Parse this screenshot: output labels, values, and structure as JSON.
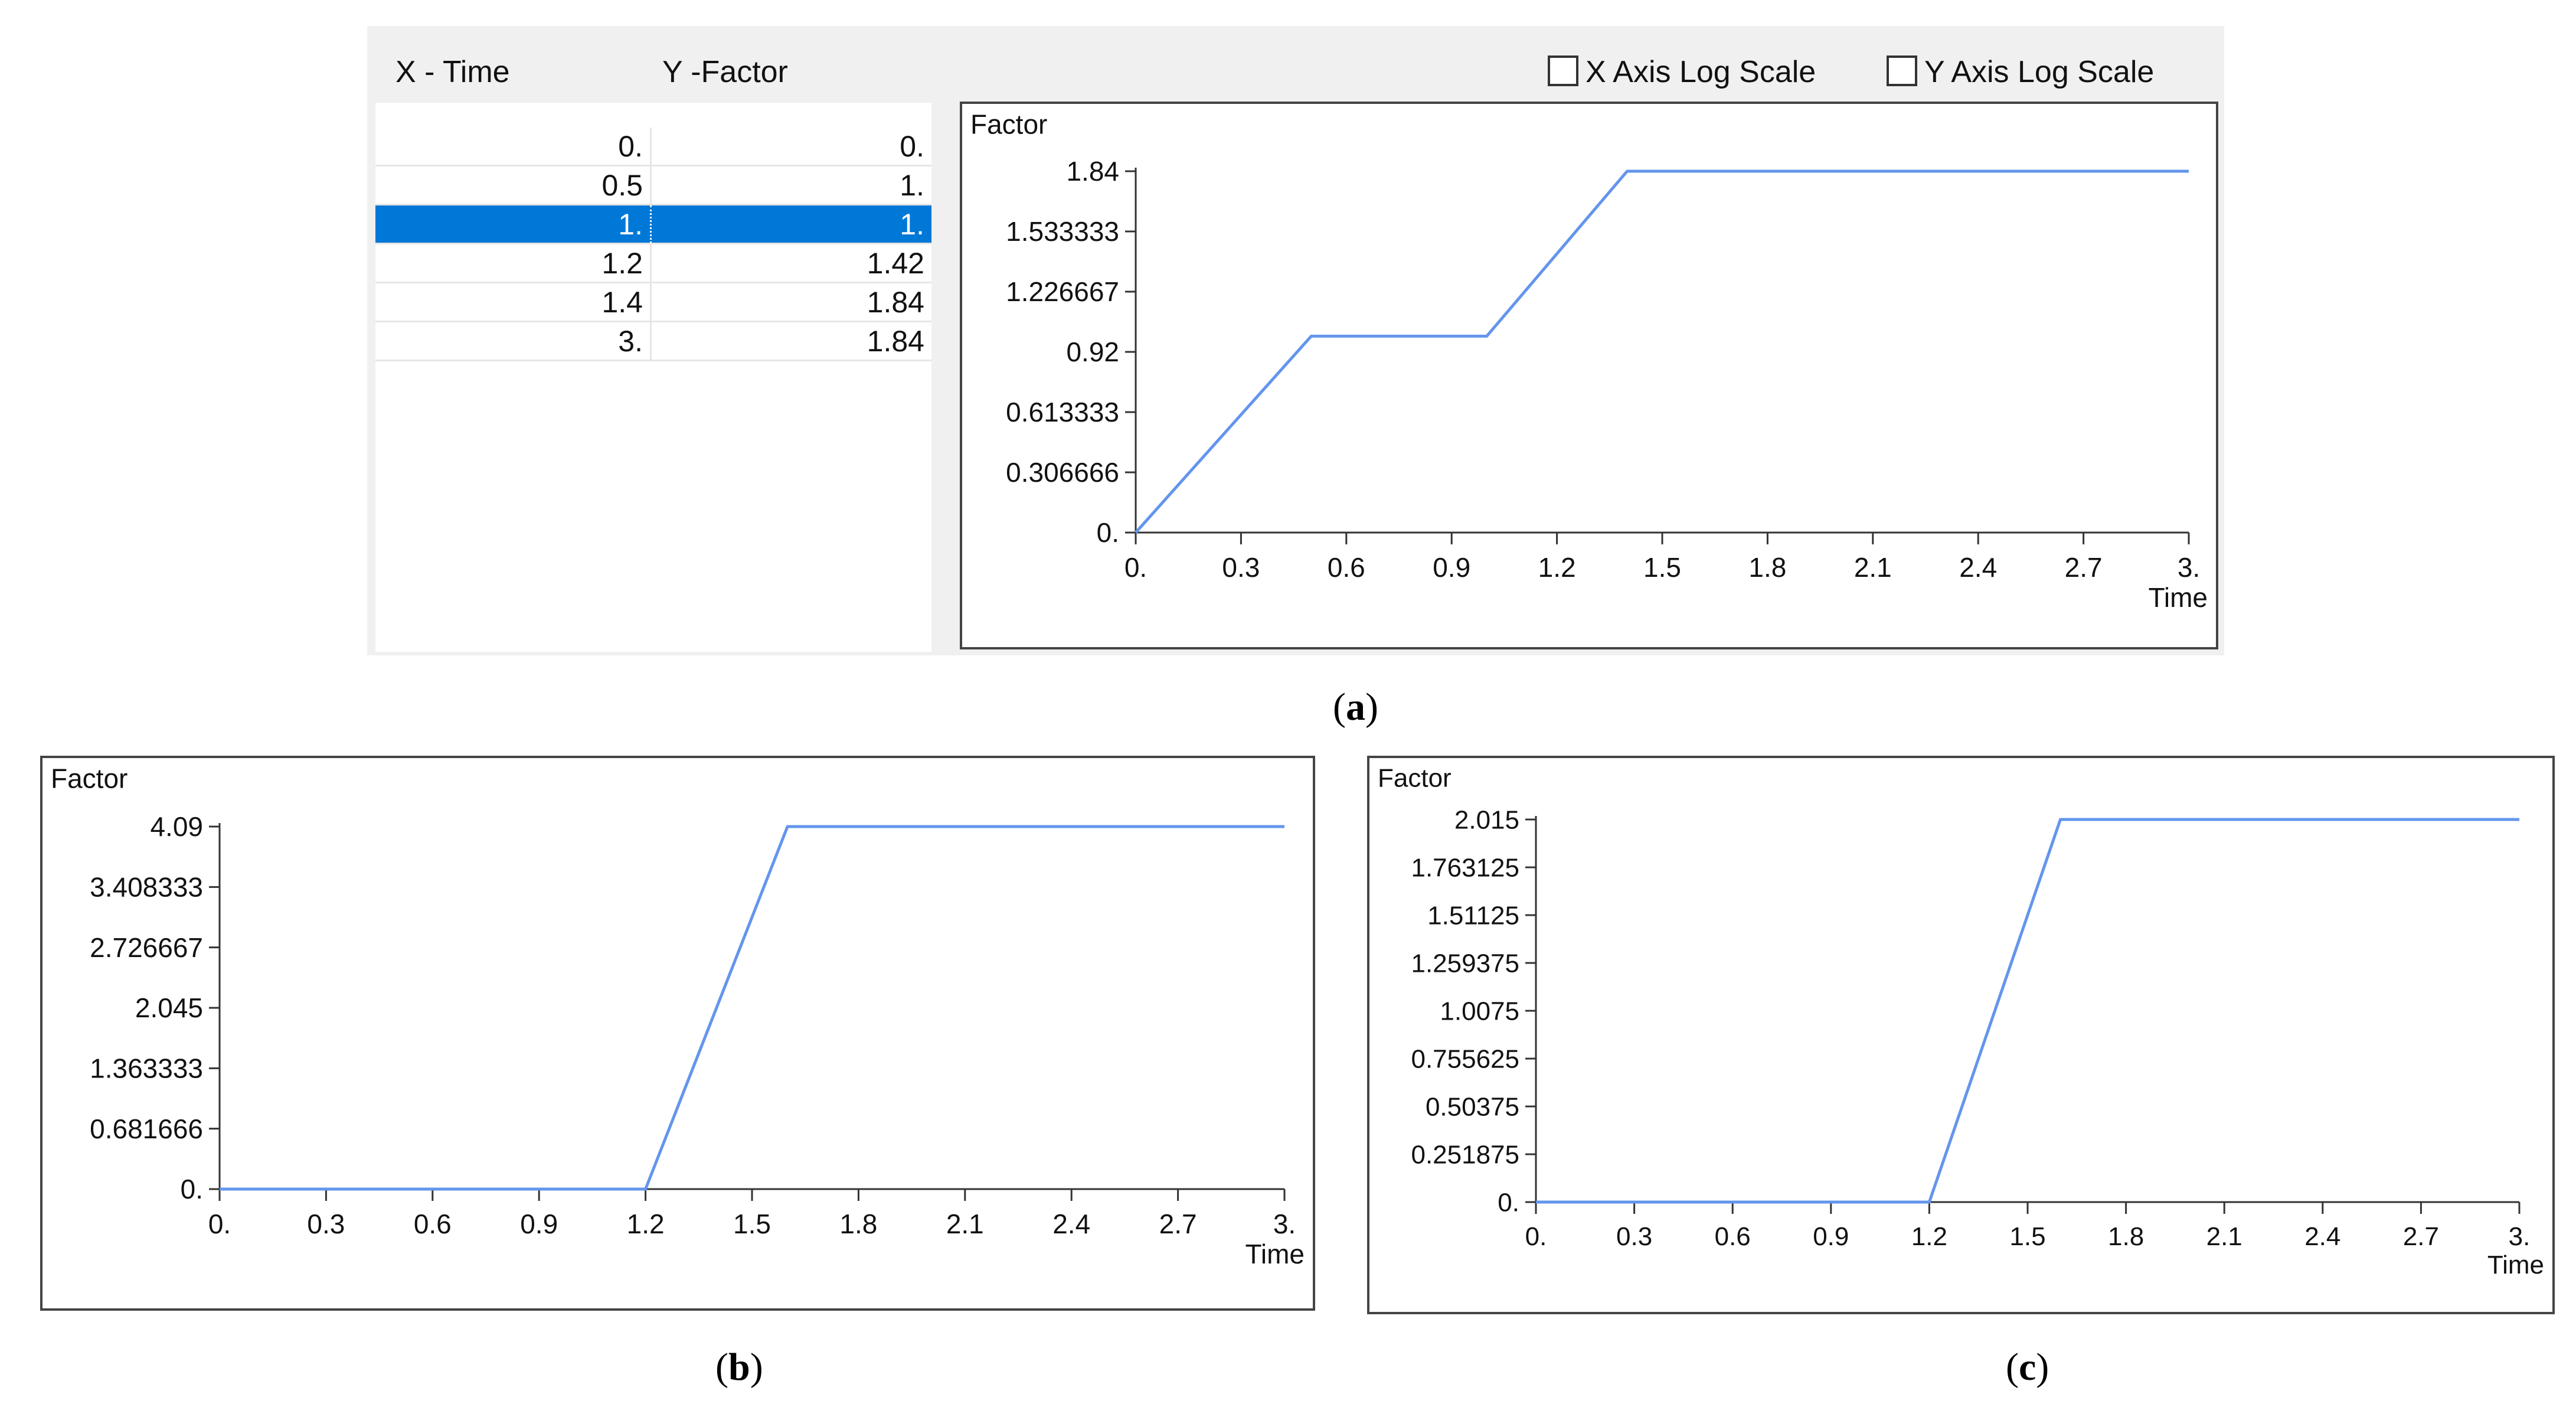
{
  "panel_a": {
    "table": {
      "headers": [
        "X - Time",
        "Y -Factor"
      ],
      "rows": [
        {
          "x": "0.",
          "y": "0."
        },
        {
          "x": "0.5",
          "y": "1."
        },
        {
          "x": "1.",
          "y": "1.",
          "selected": true
        },
        {
          "x": "1.2",
          "y": "1.42"
        },
        {
          "x": "1.4",
          "y": "1.84"
        },
        {
          "x": "3.",
          "y": "1.84"
        }
      ]
    },
    "x_log_label": "X Axis Log Scale",
    "y_log_label": "Y Axis Log Scale",
    "x_log_checked": false,
    "y_log_checked": false
  },
  "captions": {
    "a": "a",
    "b": "b",
    "c": "c"
  },
  "chart_data": [
    {
      "id": "a",
      "type": "line",
      "ylabel": "Factor",
      "xlabel": "Time",
      "x": [
        0,
        0.5,
        1,
        1.2,
        1.4,
        3
      ],
      "series": [
        {
          "values": [
            0,
            1,
            1,
            1.42,
            1.84,
            1.84
          ]
        }
      ],
      "xlim": [
        0,
        3
      ],
      "ylim": [
        0,
        1.84
      ],
      "x_ticks": [
        "0.",
        "0.3",
        "0.6",
        "0.9",
        "1.2",
        "1.5",
        "1.8",
        "2.1",
        "2.4",
        "2.7",
        "3."
      ],
      "y_ticks": [
        "0.",
        "0.306666",
        "0.613333",
        "0.92",
        "1.226667",
        "1.533333",
        "1.84"
      ],
      "line_color": "#6495ed",
      "grid": false
    },
    {
      "id": "b",
      "type": "line",
      "ylabel": "Factor",
      "xlabel": "Time",
      "x": [
        0,
        1.2,
        1.6,
        3
      ],
      "series": [
        {
          "values": [
            0,
            0,
            4.09,
            4.09
          ]
        }
      ],
      "xlim": [
        0,
        3
      ],
      "ylim": [
        0,
        4.09
      ],
      "x_ticks": [
        "0.",
        "0.3",
        "0.6",
        "0.9",
        "1.2",
        "1.5",
        "1.8",
        "2.1",
        "2.4",
        "2.7",
        "3."
      ],
      "y_ticks": [
        "0.",
        "0.681666",
        "1.363333",
        "2.045",
        "2.726667",
        "3.408333",
        "4.09"
      ],
      "line_color": "#6495ed",
      "grid": false
    },
    {
      "id": "c",
      "type": "line",
      "ylabel": "Factor",
      "xlabel": "Time",
      "x": [
        0,
        1.2,
        1.6,
        3
      ],
      "series": [
        {
          "values": [
            0,
            0,
            2.015,
            2.015
          ]
        }
      ],
      "xlim": [
        0,
        3
      ],
      "ylim": [
        0,
        2.015
      ],
      "x_ticks": [
        "0.",
        "0.3",
        "0.6",
        "0.9",
        "1.2",
        "1.5",
        "1.8",
        "2.1",
        "2.4",
        "2.7",
        "3."
      ],
      "y_ticks": [
        "0.",
        "0.251875",
        "0.50375",
        "0.755625",
        "1.0075",
        "1.259375",
        "1.51125",
        "1.763125",
        "2.015"
      ],
      "line_color": "#6495ed",
      "grid": false
    }
  ]
}
